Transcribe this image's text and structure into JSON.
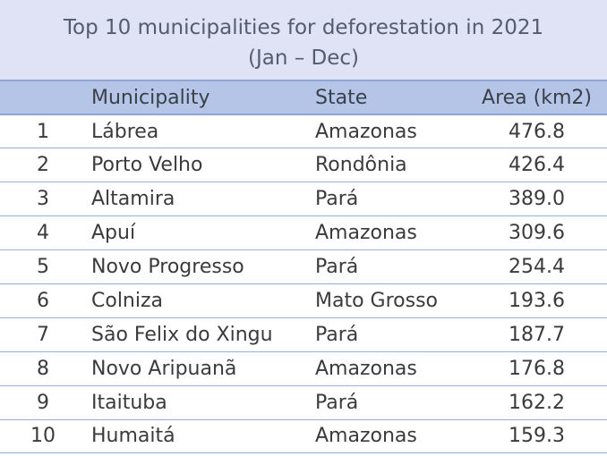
{
  "title": {
    "line1": "Top 10 municipalities for deforestation in 2021",
    "line2": "(Jan – Dec)"
  },
  "headers": {
    "rank": "",
    "municipality": "Municipality",
    "state": "State",
    "area": "Area (km2)"
  },
  "rows": [
    {
      "rank": "1",
      "municipality": "Lábrea",
      "state": "Amazonas",
      "area": "476.8"
    },
    {
      "rank": "2",
      "municipality": "Porto Velho",
      "state": "Rondônia",
      "area": "426.4"
    },
    {
      "rank": "3",
      "municipality": "Altamira",
      "state": "Pará",
      "area": "389.0"
    },
    {
      "rank": "4",
      "municipality": "Apuí",
      "state": "Amazonas",
      "area": "309.6"
    },
    {
      "rank": "5",
      "municipality": "Novo Progresso",
      "state": "Pará",
      "area": "254.4"
    },
    {
      "rank": "6",
      "municipality": "Colniza",
      "state": "Mato Grosso",
      "area": "193.6"
    },
    {
      "rank": "7",
      "municipality": "São Felix do Xingu",
      "state": "Pará",
      "area": "187.7"
    },
    {
      "rank": "8",
      "municipality": "Novo Aripuanã",
      "state": "Amazonas",
      "area": "176.8"
    },
    {
      "rank": "9",
      "municipality": "Itaituba",
      "state": "Pará",
      "area": "162.2"
    },
    {
      "rank": "10",
      "municipality": "Humaitá",
      "state": "Amazonas",
      "area": "159.3"
    }
  ],
  "colors": {
    "title_bg": "#dfe3f5",
    "header_bg": "#b5c5e8",
    "rule": "#9ab0dc"
  }
}
